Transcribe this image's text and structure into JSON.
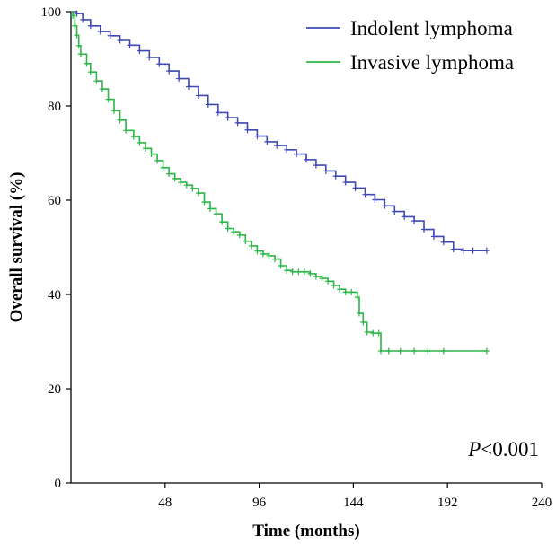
{
  "chart_data": {
    "type": "line",
    "title": "",
    "xlabel": "Time (months)",
    "ylabel": "Overall survival (%)",
    "xlim": [
      0,
      240
    ],
    "ylim": [
      0,
      100
    ],
    "xticks": [
      48,
      96,
      144,
      192,
      240
    ],
    "yticks": [
      0,
      20,
      40,
      60,
      80,
      100
    ],
    "x_origin_label": "",
    "grid": false,
    "legend_position": "top-right",
    "annotation": {
      "italic": "P",
      "text": "<0.001"
    },
    "series": [
      {
        "name": "Indolent lymphoma",
        "color": "#3f49b2",
        "points": [
          [
            0,
            100
          ],
          [
            3,
            99.6
          ],
          [
            6,
            98.3
          ],
          [
            10,
            97
          ],
          [
            15,
            95.8
          ],
          [
            20,
            94.9
          ],
          [
            25,
            93.9
          ],
          [
            30,
            92.9
          ],
          [
            35,
            91.7
          ],
          [
            40,
            90.3
          ],
          [
            45,
            88.9
          ],
          [
            50,
            87.4
          ],
          [
            55,
            85.8
          ],
          [
            60,
            84.1
          ],
          [
            65,
            82.2
          ],
          [
            70,
            80.3
          ],
          [
            75,
            78.6
          ],
          [
            80,
            77.5
          ],
          [
            85,
            76.4
          ],
          [
            90,
            74.9
          ],
          [
            95,
            73.6
          ],
          [
            100,
            72.4
          ],
          [
            105,
            71.6
          ],
          [
            110,
            70.7
          ],
          [
            115,
            69.8
          ],
          [
            120,
            68.6
          ],
          [
            125,
            67.4
          ],
          [
            130,
            66.2
          ],
          [
            135,
            65.1
          ],
          [
            140,
            63.8
          ],
          [
            145,
            62.6
          ],
          [
            150,
            61.2
          ],
          [
            155,
            60.1
          ],
          [
            160,
            58.8
          ],
          [
            165,
            57.6
          ],
          [
            170,
            56.5
          ],
          [
            175,
            55.6
          ],
          [
            180,
            53.8
          ],
          [
            185,
            52.3
          ],
          [
            190,
            51.1
          ],
          [
            195,
            49.6
          ],
          [
            200,
            49.3
          ],
          [
            205,
            49.3
          ],
          [
            212,
            49.3
          ]
        ]
      },
      {
        "name": "Invasive lymphoma",
        "color": "#2db548",
        "points": [
          [
            0,
            100
          ],
          [
            1,
            99.2
          ],
          [
            2,
            97
          ],
          [
            3,
            95
          ],
          [
            4,
            92.8
          ],
          [
            5,
            91
          ],
          [
            8,
            89
          ],
          [
            10,
            87.2
          ],
          [
            13,
            85.3
          ],
          [
            16,
            83.6
          ],
          [
            19,
            81.4
          ],
          [
            22,
            79
          ],
          [
            25,
            77
          ],
          [
            28,
            74.8
          ],
          [
            32,
            73.5
          ],
          [
            35,
            72.2
          ],
          [
            38,
            71
          ],
          [
            41,
            69.8
          ],
          [
            44,
            68.4
          ],
          [
            47,
            66.9
          ],
          [
            50,
            65.6
          ],
          [
            53,
            64.6
          ],
          [
            56,
            63.8
          ],
          [
            59,
            63.2
          ],
          [
            62,
            62.5
          ],
          [
            65,
            61.5
          ],
          [
            68,
            59.6
          ],
          [
            71,
            58.2
          ],
          [
            74,
            57.1
          ],
          [
            77,
            55.4
          ],
          [
            80,
            54
          ],
          [
            83,
            53.3
          ],
          [
            86,
            52.6
          ],
          [
            89,
            51.3
          ],
          [
            92,
            50.3
          ],
          [
            95,
            49.2
          ],
          [
            98,
            48.6
          ],
          [
            101,
            48.2
          ],
          [
            104,
            47.5
          ],
          [
            107,
            46.1
          ],
          [
            110,
            45.1
          ],
          [
            113,
            44.8
          ],
          [
            116,
            44.8
          ],
          [
            119,
            44.8
          ],
          [
            122,
            44.4
          ],
          [
            125,
            43.8
          ],
          [
            128,
            43.4
          ],
          [
            131,
            42.8
          ],
          [
            134,
            41.9
          ],
          [
            137,
            41.1
          ],
          [
            140,
            40.5
          ],
          [
            143,
            40.5
          ],
          [
            146,
            39.4
          ],
          [
            147,
            36
          ],
          [
            149,
            34.1
          ],
          [
            151,
            32
          ],
          [
            154,
            31.8
          ],
          [
            157,
            31.8
          ],
          [
            158,
            28
          ],
          [
            162,
            28
          ],
          [
            168,
            28
          ],
          [
            175,
            28
          ],
          [
            182,
            28
          ],
          [
            190,
            28
          ],
          [
            212,
            28
          ]
        ]
      }
    ]
  }
}
